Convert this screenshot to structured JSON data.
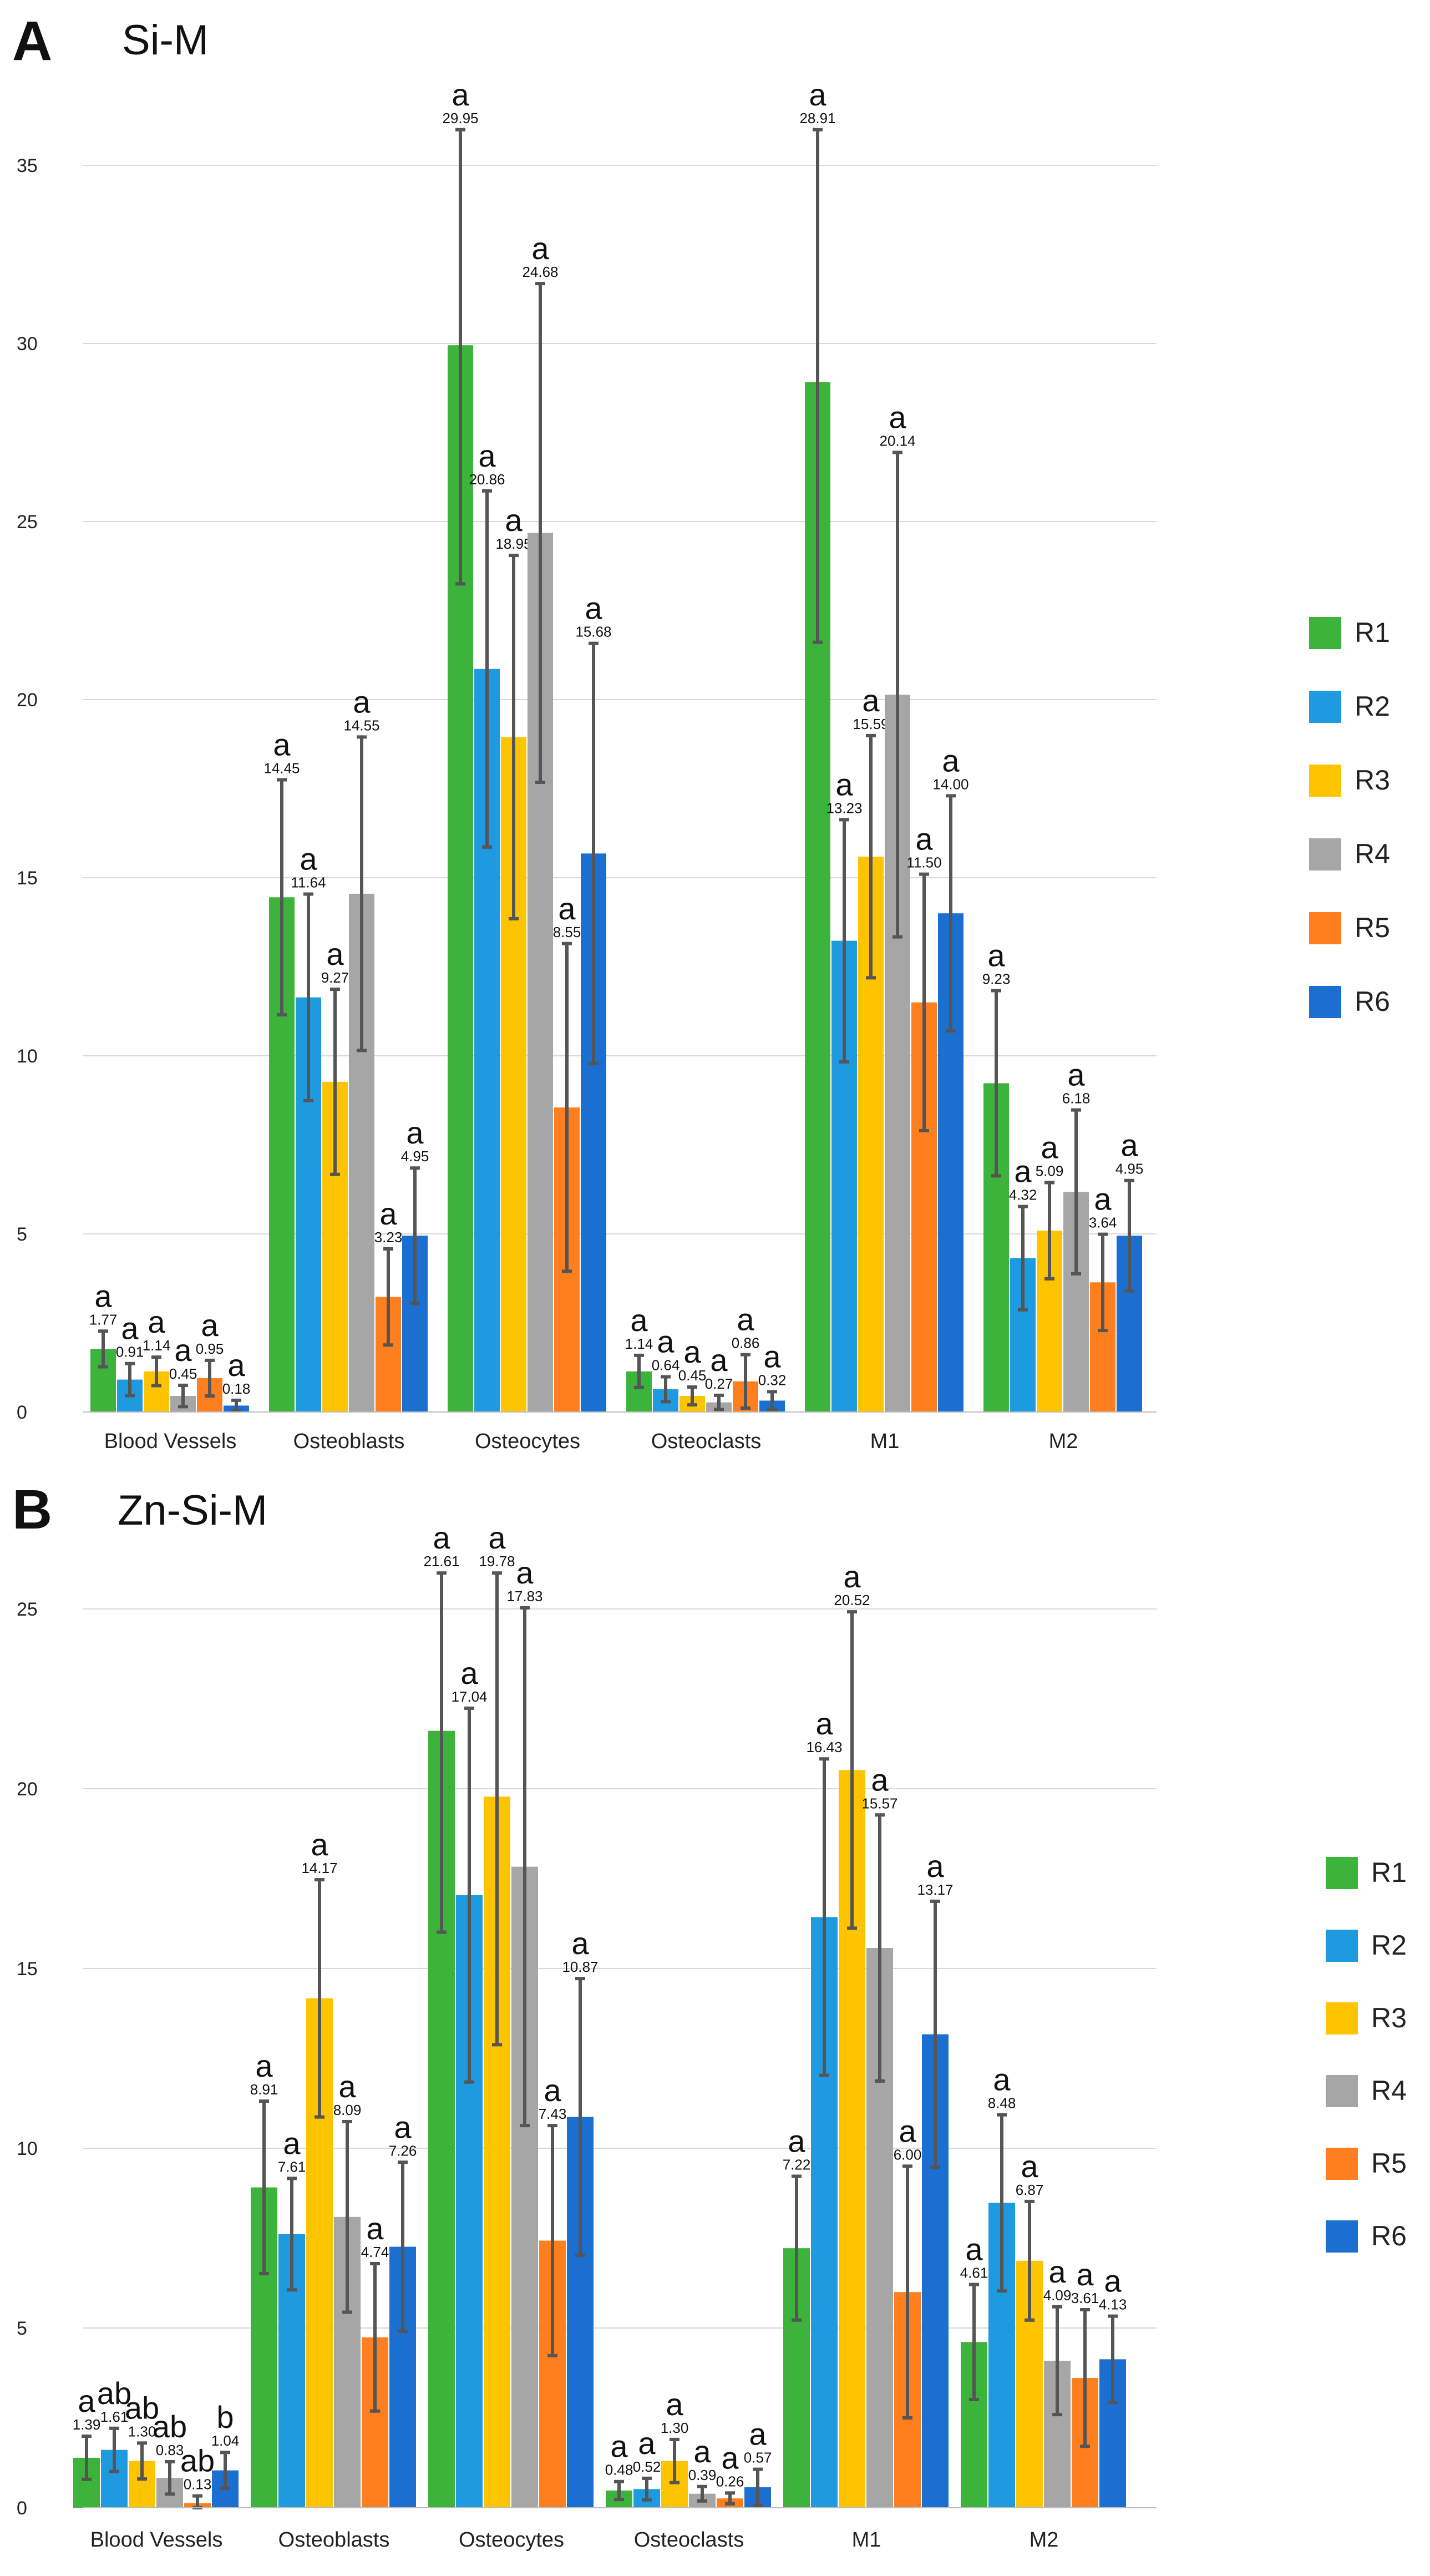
{
  "colors": {
    "R1": "#3cb43c",
    "R2": "#1e9be0",
    "R3": "#ffc400",
    "R4": "#a6a6a6",
    "R5": "#ff7f1e",
    "R6": "#1a6fd0",
    "grid": "#d9d9d9",
    "errorbar": "#555555"
  },
  "chart_data": [
    {
      "type": "bar",
      "panel_letter": "A",
      "title": "Si-M",
      "categories": [
        "Blood Vessels",
        "Osteoblasts",
        "Osteocytes",
        "Osteoclasts",
        "M1",
        "M2"
      ],
      "ylim": [
        0,
        35
      ],
      "yticks": [
        0,
        5,
        10,
        15,
        20,
        25,
        30,
        35
      ],
      "grid": true,
      "legend_position": "right",
      "series": [
        {
          "name": "R1",
          "values": [
            1.77,
            14.45,
            29.95,
            1.14,
            28.91,
            9.23
          ],
          "labels": [
            "1.77",
            "14.45",
            "29.95",
            "1.14",
            "28.91",
            "9.23"
          ],
          "errors": [
            0.5,
            3.3,
            6.7,
            0.45,
            7.3,
            2.6
          ],
          "sig": [
            "a",
            "a",
            "a",
            "a",
            "a",
            "a"
          ]
        },
        {
          "name": "R2",
          "values": [
            0.91,
            11.64,
            20.86,
            0.64,
            13.23,
            4.32
          ],
          "labels": [
            "0.91",
            "11.64",
            "20.86",
            "0.64",
            "13.23",
            "4.32"
          ],
          "errors": [
            0.45,
            2.9,
            5.0,
            0.35,
            3.4,
            1.45
          ],
          "sig": [
            "a",
            "a",
            "a",
            "a",
            "a",
            "a"
          ]
        },
        {
          "name": "R3",
          "values": [
            1.14,
            9.27,
            18.95,
            0.45,
            15.59,
            5.09
          ],
          "labels": [
            "1.14",
            "9.27",
            "18.95",
            "0.45",
            "15.59",
            "5.09"
          ],
          "errors": [
            0.4,
            2.6,
            5.1,
            0.25,
            3.4,
            1.35
          ],
          "sig": [
            "a",
            "a",
            "a",
            "a",
            "a",
            "a"
          ]
        },
        {
          "name": "R4",
          "values": [
            0.45,
            14.55,
            24.68,
            0.27,
            20.14,
            6.18
          ],
          "labels": [
            "0.45",
            "14.55",
            "24.68",
            "0.27",
            "20.14",
            "6.18"
          ],
          "errors": [
            0.3,
            4.4,
            7.0,
            0.2,
            6.8,
            2.3
          ],
          "sig": [
            "a",
            "a",
            "a",
            "a",
            "a",
            "a"
          ]
        },
        {
          "name": "R5",
          "values": [
            0.95,
            3.23,
            8.55,
            0.86,
            11.5,
            3.64
          ],
          "labels": [
            "0.95",
            "3.23",
            "8.55",
            "0.86",
            "11.50",
            "3.64"
          ],
          "errors": [
            0.5,
            1.35,
            4.6,
            0.75,
            3.6,
            1.35
          ],
          "sig": [
            "a",
            "a",
            "a",
            "a",
            "a",
            "a"
          ]
        },
        {
          "name": "R6",
          "values": [
            0.18,
            4.95,
            15.68,
            0.32,
            14.0,
            4.95
          ],
          "labels": [
            "0.18",
            "4.95",
            "15.68",
            "0.32",
            "14.00",
            "4.95"
          ],
          "errors": [
            0.15,
            1.9,
            5.9,
            0.25,
            3.3,
            1.55
          ],
          "sig": [
            "a",
            "a",
            "a",
            "a",
            "a",
            "a"
          ]
        }
      ]
    },
    {
      "type": "bar",
      "panel_letter": "B",
      "title": "Zn-Si-M",
      "categories": [
        "Blood Vessels",
        "Osteoblasts",
        "Osteocytes",
        "Osteoclasts",
        "M1",
        "M2"
      ],
      "ylim": [
        0,
        25
      ],
      "yticks": [
        0,
        5,
        10,
        15,
        20,
        25
      ],
      "grid": true,
      "legend_position": "right",
      "series": [
        {
          "name": "R1",
          "values": [
            1.39,
            8.91,
            21.61,
            0.48,
            7.22,
            4.61
          ],
          "labels": [
            "1.39",
            "8.91",
            "21.61",
            "0.48",
            "7.22",
            "4.61"
          ],
          "errors": [
            0.6,
            2.4,
            5.6,
            0.25,
            2.0,
            1.6
          ],
          "sig": [
            "a",
            "a",
            "a",
            "a",
            "a",
            "a"
          ]
        },
        {
          "name": "R2",
          "values": [
            1.61,
            7.61,
            17.04,
            0.52,
            16.43,
            8.48
          ],
          "labels": [
            "1.61",
            "7.61",
            "17.04",
            "0.52",
            "16.43",
            "8.48"
          ],
          "errors": [
            0.6,
            1.55,
            5.2,
            0.3,
            4.4,
            2.45
          ],
          "sig": [
            "ab",
            "a",
            "a",
            "a",
            "a",
            "a"
          ]
        },
        {
          "name": "R3",
          "values": [
            1.3,
            14.17,
            19.78,
            1.3,
            20.52,
            6.87
          ],
          "labels": [
            "1.30",
            "14.17",
            "19.78",
            "1.30",
            "20.52",
            "6.87"
          ],
          "errors": [
            0.5,
            3.3,
            6.9,
            0.6,
            4.4,
            1.65
          ],
          "sig": [
            "ab",
            "a",
            "a",
            "a",
            "a",
            "a"
          ]
        },
        {
          "name": "R4",
          "values": [
            0.83,
            8.09,
            17.83,
            0.39,
            15.57,
            4.09
          ],
          "labels": [
            "0.83",
            "8.09",
            "17.83",
            "0.39",
            "15.57",
            "4.09"
          ],
          "errors": [
            0.45,
            2.65,
            7.2,
            0.2,
            3.7,
            1.5
          ],
          "sig": [
            "ab",
            "a",
            "a",
            "a",
            "a",
            "a"
          ]
        },
        {
          "name": "R5",
          "values": [
            0.13,
            4.74,
            7.43,
            0.26,
            6.0,
            3.61
          ],
          "labels": [
            "0.13",
            "4.74",
            "7.43",
            "0.26",
            "6.00",
            "3.61"
          ],
          "errors": [
            0.2,
            2.05,
            3.2,
            0.15,
            3.5,
            1.9
          ],
          "sig": [
            "ab",
            "a",
            "a",
            "a",
            "a",
            "a"
          ]
        },
        {
          "name": "R6",
          "values": [
            1.04,
            7.26,
            10.87,
            0.57,
            13.17,
            4.13
          ],
          "labels": [
            "1.04",
            "7.26",
            "10.87",
            "0.57",
            "13.17",
            "4.13"
          ],
          "errors": [
            0.5,
            2.35,
            3.85,
            0.5,
            3.7,
            1.2
          ],
          "sig": [
            "b",
            "a",
            "a",
            "a",
            "a",
            "a"
          ]
        }
      ]
    }
  ]
}
